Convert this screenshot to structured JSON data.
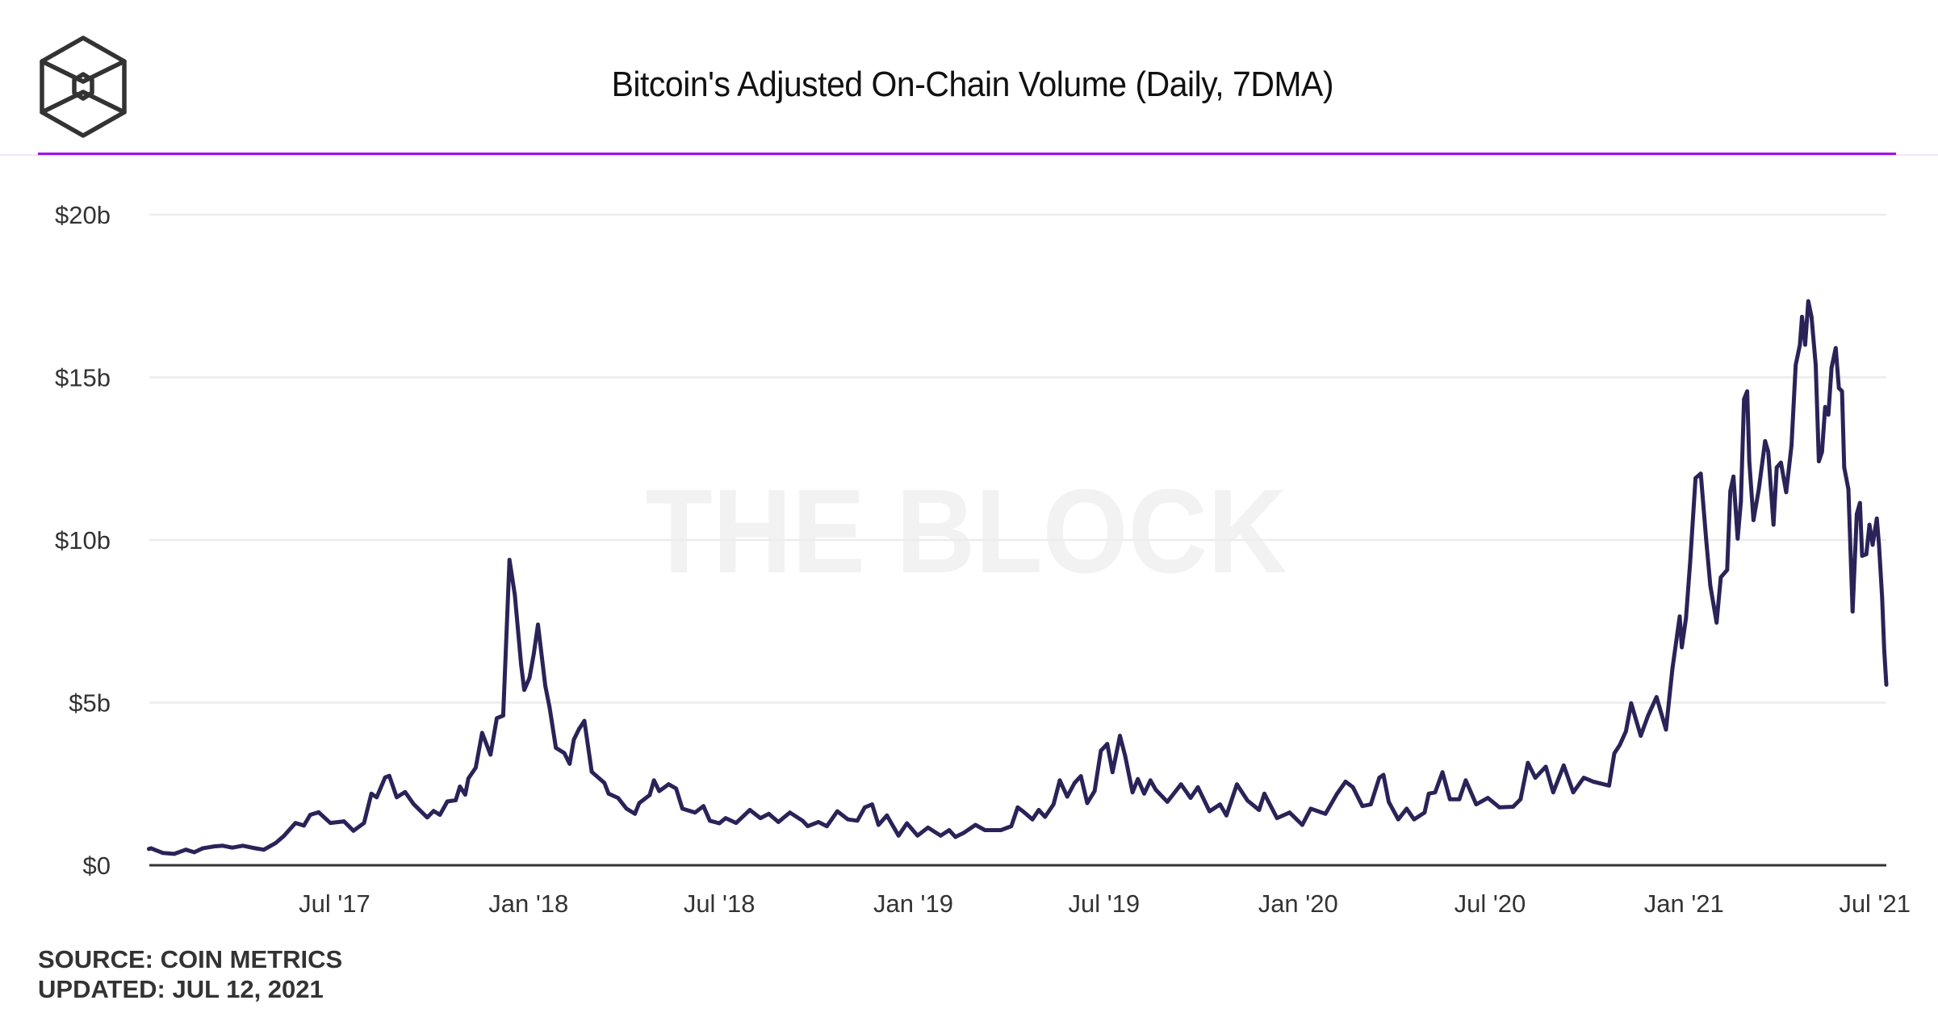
{
  "header": {
    "logo_name": "The Block logo",
    "title": "Bitcoin's Adjusted On-Chain Volume (Daily, 7DMA)",
    "accent_color": "#a30df0"
  },
  "watermark": "THE BLOCK",
  "footer": {
    "source": "SOURCE: COIN METRICS",
    "updated": "UPDATED: JUL 12, 2021"
  },
  "chart_data": {
    "type": "line",
    "title": "Bitcoin's Adjusted On-Chain Volume (Daily, 7DMA)",
    "xlabel": "",
    "ylabel": "",
    "unit": "USD billions",
    "ylim": [
      0,
      20
    ],
    "xlim": [
      "2017-01-01",
      "2021-07-12"
    ],
    "grid": true,
    "legend": "none",
    "line_color": "#2a2358",
    "y_ticks": [
      {
        "value": 0,
        "label": "$0"
      },
      {
        "value": 5,
        "label": "$5b"
      },
      {
        "value": 10,
        "label": "$10b"
      },
      {
        "value": 15,
        "label": "$15b"
      },
      {
        "value": 20,
        "label": "$20b"
      }
    ],
    "x_ticks": [
      {
        "date": "2017-07-01",
        "label": "Jul '17"
      },
      {
        "date": "2018-01-01",
        "label": "Jan '18"
      },
      {
        "date": "2018-07-01",
        "label": "Jul '18"
      },
      {
        "date": "2019-01-01",
        "label": "Jan '19"
      },
      {
        "date": "2019-07-01",
        "label": "Jul '19"
      },
      {
        "date": "2020-01-01",
        "label": "Jan '20"
      },
      {
        "date": "2020-07-01",
        "label": "Jul '20"
      },
      {
        "date": "2021-01-01",
        "label": "Jan '21"
      },
      {
        "date": "2021-07-01",
        "label": "Jul '21"
      }
    ],
    "series": [
      {
        "name": "Adjusted On-Chain Volume (7DMA)",
        "points": [
          [
            "2017-01-06",
            0.5
          ],
          [
            "2017-01-08",
            0.52
          ],
          [
            "2017-01-19",
            0.38
          ],
          [
            "2017-01-30",
            0.35
          ],
          [
            "2017-02-10",
            0.48
          ],
          [
            "2017-02-18",
            0.4
          ],
          [
            "2017-02-26",
            0.52
          ],
          [
            "2017-03-09",
            0.58
          ],
          [
            "2017-03-17",
            0.6
          ],
          [
            "2017-03-26",
            0.54
          ],
          [
            "2017-04-05",
            0.6
          ],
          [
            "2017-04-17",
            0.52
          ],
          [
            "2017-04-25",
            0.48
          ],
          [
            "2017-05-06",
            0.68
          ],
          [
            "2017-05-14",
            0.9
          ],
          [
            "2017-05-25",
            1.3
          ],
          [
            "2017-06-02",
            1.22
          ],
          [
            "2017-06-08",
            1.55
          ],
          [
            "2017-06-16",
            1.63
          ],
          [
            "2017-06-27",
            1.3
          ],
          [
            "2017-07-10",
            1.35
          ],
          [
            "2017-07-19",
            1.06
          ],
          [
            "2017-07-29",
            1.3
          ],
          [
            "2017-08-05",
            2.2
          ],
          [
            "2017-08-10",
            2.09
          ],
          [
            "2017-08-18",
            2.7
          ],
          [
            "2017-08-22",
            2.75
          ],
          [
            "2017-08-29",
            2.09
          ],
          [
            "2017-09-06",
            2.25
          ],
          [
            "2017-09-14",
            1.88
          ],
          [
            "2017-09-27",
            1.47
          ],
          [
            "2017-10-03",
            1.67
          ],
          [
            "2017-10-09",
            1.55
          ],
          [
            "2017-10-16",
            1.96
          ],
          [
            "2017-10-24",
            2.0
          ],
          [
            "2017-10-28",
            2.42
          ],
          [
            "2017-11-02",
            2.17
          ],
          [
            "2017-11-05",
            2.67
          ],
          [
            "2017-11-12",
            3.0
          ],
          [
            "2017-11-18",
            4.07
          ],
          [
            "2017-11-26",
            3.4
          ],
          [
            "2017-12-02",
            4.52
          ],
          [
            "2017-12-08",
            4.6
          ],
          [
            "2017-12-14",
            9.39
          ],
          [
            "2017-12-19",
            8.32
          ],
          [
            "2017-12-25",
            6.17
          ],
          [
            "2017-12-28",
            5.39
          ],
          [
            "2018-01-02",
            5.76
          ],
          [
            "2018-01-06",
            6.5
          ],
          [
            "2018-01-10",
            7.4
          ],
          [
            "2018-01-17",
            5.51
          ],
          [
            "2018-01-21",
            4.85
          ],
          [
            "2018-01-27",
            3.61
          ],
          [
            "2018-02-04",
            3.45
          ],
          [
            "2018-02-09",
            3.12
          ],
          [
            "2018-02-13",
            3.86
          ],
          [
            "2018-02-18",
            4.19
          ],
          [
            "2018-02-23",
            4.44
          ],
          [
            "2018-03-02",
            2.87
          ],
          [
            "2018-03-14",
            2.53
          ],
          [
            "2018-03-18",
            2.2
          ],
          [
            "2018-03-27",
            2.07
          ],
          [
            "2018-04-04",
            1.74
          ],
          [
            "2018-04-12",
            1.58
          ],
          [
            "2018-04-16",
            1.91
          ],
          [
            "2018-04-26",
            2.16
          ],
          [
            "2018-04-30",
            2.61
          ],
          [
            "2018-05-05",
            2.28
          ],
          [
            "2018-05-14",
            2.49
          ],
          [
            "2018-05-21",
            2.36
          ],
          [
            "2018-05-27",
            1.74
          ],
          [
            "2018-06-08",
            1.62
          ],
          [
            "2018-06-16",
            1.82
          ],
          [
            "2018-06-22",
            1.37
          ],
          [
            "2018-07-01",
            1.29
          ],
          [
            "2018-07-07",
            1.45
          ],
          [
            "2018-07-17",
            1.3
          ],
          [
            "2018-07-30",
            1.7
          ],
          [
            "2018-08-09",
            1.45
          ],
          [
            "2018-08-17",
            1.58
          ],
          [
            "2018-08-26",
            1.33
          ],
          [
            "2018-09-06",
            1.62
          ],
          [
            "2018-09-18",
            1.37
          ],
          [
            "2018-09-23",
            1.2
          ],
          [
            "2018-10-03",
            1.33
          ],
          [
            "2018-10-11",
            1.2
          ],
          [
            "2018-10-21",
            1.66
          ],
          [
            "2018-10-31",
            1.41
          ],
          [
            "2018-11-09",
            1.37
          ],
          [
            "2018-11-16",
            1.78
          ],
          [
            "2018-11-23",
            1.87
          ],
          [
            "2018-11-29",
            1.24
          ],
          [
            "2018-12-07",
            1.53
          ],
          [
            "2018-12-18",
            0.91
          ],
          [
            "2018-12-26",
            1.29
          ],
          [
            "2019-01-05",
            0.91
          ],
          [
            "2019-01-15",
            1.16
          ],
          [
            "2019-01-27",
            0.91
          ],
          [
            "2019-02-04",
            1.08
          ],
          [
            "2019-02-10",
            0.87
          ],
          [
            "2019-02-18",
            1.0
          ],
          [
            "2019-03-01",
            1.24
          ],
          [
            "2019-03-10",
            1.08
          ],
          [
            "2019-03-25",
            1.08
          ],
          [
            "2019-04-04",
            1.2
          ],
          [
            "2019-04-10",
            1.78
          ],
          [
            "2019-04-15",
            1.66
          ],
          [
            "2019-04-24",
            1.41
          ],
          [
            "2019-04-30",
            1.7
          ],
          [
            "2019-05-06",
            1.49
          ],
          [
            "2019-05-14",
            1.87
          ],
          [
            "2019-05-20",
            2.61
          ],
          [
            "2019-05-27",
            2.11
          ],
          [
            "2019-06-03",
            2.53
          ],
          [
            "2019-06-09",
            2.74
          ],
          [
            "2019-06-15",
            1.91
          ],
          [
            "2019-06-22",
            2.28
          ],
          [
            "2019-06-28",
            3.52
          ],
          [
            "2019-07-04",
            3.73
          ],
          [
            "2019-07-09",
            2.86
          ],
          [
            "2019-07-16",
            3.98
          ],
          [
            "2019-07-21",
            3.36
          ],
          [
            "2019-07-28",
            2.24
          ],
          [
            "2019-08-02",
            2.65
          ],
          [
            "2019-08-08",
            2.2
          ],
          [
            "2019-08-14",
            2.61
          ],
          [
            "2019-08-19",
            2.32
          ],
          [
            "2019-08-30",
            1.95
          ],
          [
            "2019-09-12",
            2.49
          ],
          [
            "2019-09-21",
            2.07
          ],
          [
            "2019-09-28",
            2.4
          ],
          [
            "2019-10-09",
            1.66
          ],
          [
            "2019-10-19",
            1.87
          ],
          [
            "2019-10-25",
            1.53
          ],
          [
            "2019-11-04",
            2.49
          ],
          [
            "2019-11-14",
            1.99
          ],
          [
            "2019-11-25",
            1.7
          ],
          [
            "2019-11-30",
            2.2
          ],
          [
            "2019-12-12",
            1.45
          ],
          [
            "2019-12-24",
            1.62
          ],
          [
            "2020-01-05",
            1.24
          ],
          [
            "2020-01-13",
            1.74
          ],
          [
            "2020-01-27",
            1.58
          ],
          [
            "2020-02-07",
            2.2
          ],
          [
            "2020-02-15",
            2.57
          ],
          [
            "2020-02-22",
            2.4
          ],
          [
            "2020-03-02",
            1.82
          ],
          [
            "2020-03-10",
            1.87
          ],
          [
            "2020-03-18",
            2.69
          ],
          [
            "2020-03-22",
            2.78
          ],
          [
            "2020-03-27",
            1.95
          ],
          [
            "2020-04-05",
            1.41
          ],
          [
            "2020-04-13",
            1.74
          ],
          [
            "2020-04-20",
            1.41
          ],
          [
            "2020-04-30",
            1.62
          ],
          [
            "2020-05-04",
            2.2
          ],
          [
            "2020-05-10",
            2.24
          ],
          [
            "2020-05-17",
            2.86
          ],
          [
            "2020-05-24",
            2.03
          ],
          [
            "2020-06-02",
            2.03
          ],
          [
            "2020-06-08",
            2.61
          ],
          [
            "2020-06-18",
            1.87
          ],
          [
            "2020-06-29",
            2.07
          ],
          [
            "2020-07-10",
            1.78
          ],
          [
            "2020-07-23",
            1.8
          ],
          [
            "2020-07-30",
            2.03
          ],
          [
            "2020-08-06",
            3.15
          ],
          [
            "2020-08-13",
            2.69
          ],
          [
            "2020-08-23",
            3.03
          ],
          [
            "2020-08-30",
            2.24
          ],
          [
            "2020-09-09",
            3.07
          ],
          [
            "2020-09-18",
            2.24
          ],
          [
            "2020-09-28",
            2.69
          ],
          [
            "2020-10-07",
            2.57
          ],
          [
            "2020-10-22",
            2.45
          ],
          [
            "2020-10-27",
            3.44
          ],
          [
            "2020-11-01",
            3.69
          ],
          [
            "2020-11-07",
            4.12
          ],
          [
            "2020-11-12",
            4.98
          ],
          [
            "2020-11-21",
            3.98
          ],
          [
            "2020-11-28",
            4.6
          ],
          [
            "2020-12-06",
            5.17
          ],
          [
            "2020-12-15",
            4.17
          ],
          [
            "2020-12-21",
            6.03
          ],
          [
            "2020-12-28",
            7.65
          ],
          [
            "2020-12-30",
            6.7
          ],
          [
            "2021-01-03",
            7.6
          ],
          [
            "2021-01-07",
            9.37
          ],
          [
            "2021-01-12",
            11.9
          ],
          [
            "2021-01-17",
            12.04
          ],
          [
            "2021-01-22",
            10.04
          ],
          [
            "2021-01-26",
            8.6
          ],
          [
            "2021-02-01",
            7.46
          ],
          [
            "2021-02-05",
            8.85
          ],
          [
            "2021-02-11",
            9.08
          ],
          [
            "2021-02-14",
            11.5
          ],
          [
            "2021-02-17",
            11.95
          ],
          [
            "2021-02-21",
            10.04
          ],
          [
            "2021-02-24",
            11.18
          ],
          [
            "2021-02-27",
            14.33
          ],
          [
            "2021-03-02",
            14.57
          ],
          [
            "2021-03-04",
            12.42
          ],
          [
            "2021-03-08",
            10.61
          ],
          [
            "2021-03-13",
            11.56
          ],
          [
            "2021-03-19",
            13.04
          ],
          [
            "2021-03-22",
            12.71
          ],
          [
            "2021-03-27",
            10.47
          ],
          [
            "2021-03-30",
            12.23
          ],
          [
            "2021-04-03",
            12.38
          ],
          [
            "2021-04-08",
            11.47
          ],
          [
            "2021-04-13",
            12.9
          ],
          [
            "2021-04-17",
            15.38
          ],
          [
            "2021-04-21",
            16.0
          ],
          [
            "2021-04-23",
            16.86
          ],
          [
            "2021-04-26",
            16.0
          ],
          [
            "2021-04-29",
            17.34
          ],
          [
            "2021-05-02",
            16.86
          ],
          [
            "2021-05-06",
            15.38
          ],
          [
            "2021-05-09",
            12.42
          ],
          [
            "2021-05-12",
            12.71
          ],
          [
            "2021-05-15",
            14.09
          ],
          [
            "2021-05-18",
            13.85
          ],
          [
            "2021-05-21",
            15.29
          ],
          [
            "2021-05-25",
            15.9
          ],
          [
            "2021-05-28",
            14.67
          ],
          [
            "2021-05-31",
            14.57
          ],
          [
            "2021-06-02",
            12.23
          ],
          [
            "2021-06-06",
            11.56
          ],
          [
            "2021-06-10",
            7.8
          ],
          [
            "2021-06-14",
            10.8
          ],
          [
            "2021-06-17",
            11.14
          ],
          [
            "2021-06-19",
            9.51
          ],
          [
            "2021-06-23",
            9.56
          ],
          [
            "2021-06-26",
            10.47
          ],
          [
            "2021-06-29",
            9.85
          ],
          [
            "2021-07-03",
            10.66
          ],
          [
            "2021-07-05",
            9.85
          ],
          [
            "2021-07-08",
            8.22
          ],
          [
            "2021-07-10",
            6.6
          ],
          [
            "2021-07-12",
            5.55
          ]
        ]
      }
    ]
  }
}
